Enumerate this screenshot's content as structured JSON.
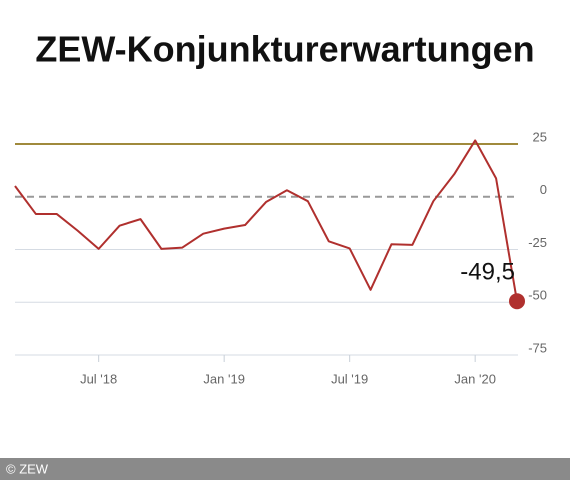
{
  "chart_data": {
    "type": "line",
    "title": "ZEW-Konjunkturerwartungen",
    "categories": [
      null,
      null,
      null,
      null,
      "Jul '18",
      null,
      null,
      null,
      null,
      null,
      "Jan '19",
      null,
      null,
      null,
      null,
      null,
      "Jul '19",
      null,
      null,
      null,
      null,
      null,
      "Jan '20",
      null,
      null
    ],
    "series": [
      {
        "name": "ZEW-Konjunkturerwartungen",
        "color": "#b0302e",
        "values": [
          5.1,
          -8.2,
          -8.2,
          -16.1,
          -24.7,
          -13.7,
          -10.6,
          -24.7,
          -24.1,
          -17.5,
          -15.1,
          -13.4,
          -2.5,
          3.1,
          -2.1,
          -21.1,
          -24.5,
          -44.1,
          -22.5,
          -22.8,
          -2.1,
          10.7,
          26.7,
          8.7,
          -49.5
        ],
        "value_labels": [
          null,
          null,
          null,
          null,
          null,
          null,
          null,
          null,
          null,
          null,
          null,
          null,
          null,
          null,
          null,
          null,
          null,
          null,
          null,
          null,
          null,
          null,
          null,
          null,
          "-49,5"
        ]
      }
    ],
    "ylim": [
      -75,
      25
    ],
    "yticks": [
      25,
      0,
      -25,
      -50,
      -75
    ],
    "grid": true,
    "reference_line": {
      "value": 25,
      "color": "#a08a3c"
    },
    "footer": "© ZEW"
  }
}
